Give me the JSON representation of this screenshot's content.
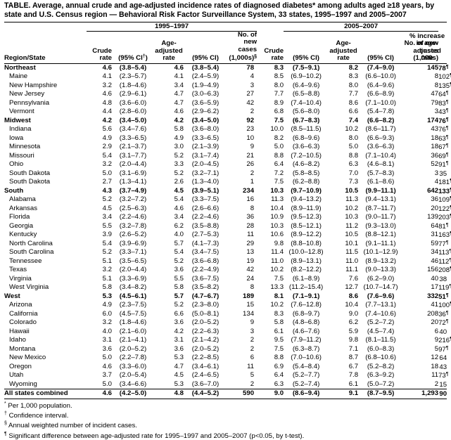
{
  "title": "TABLE. Average, annual crude and age-adjusted incidence rates of diagnosed diabetes* among adults aged ≥18 years, by state and U.S. Census region — Behavioral Risk Factor Surveillance System, 33 states, 1995–1997 and 2005–2007",
  "period1": "1995–1997",
  "period2": "2005–2007",
  "headers": {
    "region_state": "Region/State",
    "crude_rate": "Crude rate",
    "ci_crude": "(95% CI",
    "ci_dagger": "†",
    "ci_close": ")",
    "age_adjusted_rate": "Age-adjusted rate",
    "ci": "(95% CI)",
    "new_cases_1": "No. of new cases (1,000s)",
    "new_cases_mark": "§",
    "new_cases_2": "No. of new cases (1,000s)",
    "increase": "% increase in age-adjusted rate"
  },
  "rows": [
    {
      "name": "Northeast",
      "type": "region",
      "c1": "4.6",
      "ci1": "(3.8–5.4)",
      "a1": "4.6",
      "aci1": "(3.8–5.4)",
      "n1": "78",
      "c2": "8.3",
      "ci2": "(7.5–9.1)",
      "a2": "8.2",
      "aci2": "(7.4–9.0)",
      "n2": "145",
      "inc": "78",
      "mark": "¶"
    },
    {
      "name": "Maine",
      "type": "state",
      "c1": "4.1",
      "ci1": "(2.3–5.7)",
      "a1": "4.1",
      "aci1": "(2.4–5.9)",
      "n1": "4",
      "c2": "8.5",
      "ci2": "(6.9–10.2)",
      "a2": "8.3",
      "aci2": "(6.6–10.0)",
      "n2": "8",
      "inc": "102",
      "mark": "¶"
    },
    {
      "name": "New Hampshire",
      "type": "state",
      "c1": "3.2",
      "ci1": "(1.8–4.6)",
      "a1": "3.4",
      "aci1": "(1.9–4.9)",
      "n1": "3",
      "c2": "8.0",
      "ci2": "(6.4–9.6)",
      "a2": "8.0",
      "aci2": "(6.4–9.6)",
      "n2": "8",
      "inc": "135",
      "mark": "¶"
    },
    {
      "name": "New Jersey",
      "type": "state",
      "c1": "4.6",
      "ci1": "(2.9–6.1)",
      "a1": "4.7",
      "aci1": "(3.0–6.3)",
      "n1": "27",
      "c2": "7.7",
      "ci2": "(6.5–8.8)",
      "a2": "7.7",
      "aci2": "(6.6–8.9)",
      "n2": "47",
      "inc": "64",
      "mark": "¶"
    },
    {
      "name": "Pennsylvania",
      "type": "state",
      "c1": "4.8",
      "ci1": "(3.6–6.0)",
      "a1": "4.7",
      "aci1": "(3.6–5.9)",
      "n1": "42",
      "c2": "8.9",
      "ci2": "(7.4–10.4)",
      "a2": "8.6",
      "aci2": "(7.1–10.0)",
      "n2": "79",
      "inc": "83",
      "mark": "¶"
    },
    {
      "name": "Vermont",
      "type": "state",
      "c1": "4.4",
      "ci1": "(2.8–6.0)",
      "a1": "4.6",
      "aci1": "(2.9–6.2)",
      "n1": "2",
      "c2": "6.8",
      "ci2": "(5.6–8.0)",
      "a2": "6.6",
      "aci2": "(5.4–7.8)",
      "n2": "3",
      "inc": "43",
      "mark": "¶"
    },
    {
      "name": "Midwest",
      "type": "region",
      "c1": "4.2",
      "ci1": "(3.4–5.0)",
      "a1": "4.2",
      "aci1": "(3.4–5.0)",
      "n1": "92",
      "c2": "7.5",
      "ci2": "(6.7–8.3)",
      "a2": "7.4",
      "aci2": "(6.6–8.2)",
      "n2": "174",
      "inc": "76",
      "mark": "¶"
    },
    {
      "name": "Indiana",
      "type": "state",
      "c1": "5.6",
      "ci1": "(3.4–7.6)",
      "a1": "5.8",
      "aci1": "(3.6–8.0)",
      "n1": "23",
      "c2": "10.0",
      "ci2": "(8.5–11.5)",
      "a2": "10.2",
      "aci2": "(8.6–11.7)",
      "n2": "43",
      "inc": "76",
      "mark": "¶"
    },
    {
      "name": "Iowa",
      "type": "state",
      "c1": "4.9",
      "ci1": "(3.3–6.5)",
      "a1": "4.9",
      "aci1": "(3.3–6.5)",
      "n1": "10",
      "c2": "8.2",
      "ci2": "(6.8–9.6)",
      "a2": "8.0",
      "aci2": "(6.6–9.3)",
      "n2": "18",
      "inc": "63",
      "mark": "¶"
    },
    {
      "name": "Minnesota",
      "type": "state",
      "c1": "2.9",
      "ci1": "(2.1–3.7)",
      "a1": "3.0",
      "aci1": "(2.1–3.9)",
      "n1": "9",
      "c2": "5.0",
      "ci2": "(3.6–6.3)",
      "a2": "5.0",
      "aci2": "(3.6–6.3)",
      "n2": "18",
      "inc": "67",
      "mark": "¶"
    },
    {
      "name": "Missouri",
      "type": "state",
      "c1": "5.4",
      "ci1": "(3.1–7.7)",
      "a1": "5.2",
      "aci1": "(3.1–7.4)",
      "n1": "21",
      "c2": "8.8",
      "ci2": "(7.2–10.5)",
      "a2": "8.8",
      "aci2": "(7.1–10.4)",
      "n2": "36",
      "inc": "69",
      "mark": "¶"
    },
    {
      "name": "Ohio",
      "type": "state",
      "c1": "3.2",
      "ci1": "(2.0–4.4)",
      "a1": "3.3",
      "aci1": "(2.0–4.5)",
      "n1": "26",
      "c2": "6.4",
      "ci2": "(4.6–8.2)",
      "a2": "6.3",
      "aci2": "(4.6–8.1)",
      "n2": "52",
      "inc": "91",
      "mark": "¶"
    },
    {
      "name": "South Dakota",
      "type": "state",
      "c1": "5.0",
      "ci1": "(3.1–6.9)",
      "a1": "5.2",
      "aci1": "(3.2–7.1)",
      "n1": "2",
      "c2": "7.2",
      "ci2": "(5.8–8.5)",
      "a2": "7.0",
      "aci2": "(5.7–8.3)",
      "n2": "3",
      "inc": "35",
      "mark": ""
    },
    {
      "name": "South Dakota",
      "type": "state",
      "c1": "2.7",
      "ci1": "(1.3–4.1)",
      "a1": "2.6",
      "aci1": "(1.3–4.0)",
      "n1": "1",
      "c2": "7.5",
      "ci2": "(6.2–8.8)",
      "a2": "7.3",
      "aci2": "(6.1–8.6)",
      "n2": "4",
      "inc": "181",
      "mark": "¶"
    },
    {
      "name": "South",
      "type": "region",
      "c1": "4.3",
      "ci1": "(3.7–4.9)",
      "a1": "4.5",
      "aci1": "(3.9–5.1)",
      "n1": "234",
      "c2": "10.3",
      "ci2": "(9.7–10.9)",
      "a2": "10.5",
      "aci2": "(9.9–11.1)",
      "n2": "642",
      "inc": "133",
      "mark": "¶"
    },
    {
      "name": "Alabama",
      "type": "state",
      "c1": "5.2",
      "ci1": "(3.2–7.2)",
      "a1": "5.4",
      "aci1": "(3.3–7.5)",
      "n1": "16",
      "c2": "11.3",
      "ci2": "(9.4–13.2)",
      "a2": "11.3",
      "aci2": "(9.4–13.1)",
      "n2": "36",
      "inc": "109",
      "mark": "¶"
    },
    {
      "name": "Arkansas",
      "type": "state",
      "c1": "4.5",
      "ci1": "(2.5–6.3)",
      "a1": "4.6",
      "aci1": "(2.6–6.6)",
      "n1": "8",
      "c2": "10.4",
      "ci2": "(8.9–11.9)",
      "a2": "10.2",
      "aci2": "(8.7–11.7)",
      "n2": "20",
      "inc": "122",
      "mark": "¶"
    },
    {
      "name": "Florida",
      "type": "state",
      "c1": "3.4",
      "ci1": "(2.2–4.6)",
      "a1": "3.4",
      "aci1": "(2.2–4.6)",
      "n1": "36",
      "c2": "10.9",
      "ci2": "(9.5–12.3)",
      "a2": "10.3",
      "aci2": "(9.0–11.7)",
      "n2": "139",
      "inc": "203",
      "mark": "¶"
    },
    {
      "name": "Georgia",
      "type": "state",
      "c1": "5.5",
      "ci1": "(3.2–7.8)",
      "a1": "6.2",
      "aci1": "(3.5–8.8)",
      "n1": "28",
      "c2": "10.3",
      "ci2": "(8.5–12.1)",
      "a2": "11.2",
      "aci2": "(9.3–13.0)",
      "n2": "64",
      "inc": "81",
      "mark": "¶"
    },
    {
      "name": "Kentucky",
      "type": "state",
      "c1": "3.9",
      "ci1": "(2.6–5.2)",
      "a1": "4.0",
      "aci1": "(2.7–5.3)",
      "n1": "11",
      "c2": "10.6",
      "ci2": "(8.9–12.2)",
      "a2": "10.5",
      "aci2": "(8.8–12.1)",
      "n2": "31",
      "inc": "163",
      "mark": "¶"
    },
    {
      "name": "North Carolina",
      "type": "state",
      "c1": "5.4",
      "ci1": "(3.9–6.9)",
      "a1": "5.7",
      "aci1": "(4.1–7.3)",
      "n1": "29",
      "c2": "9.8",
      "ci2": "(8.8–10.8)",
      "a2": "10.1",
      "aci2": "(9.1–11.1)",
      "n2": "59",
      "inc": "77",
      "mark": "¶"
    },
    {
      "name": "South Carolina",
      "type": "state",
      "c1": "5.2",
      "ci1": "(3.3–7.1)",
      "a1": "5.4",
      "aci1": "(3.4–7.5)",
      "n1": "13",
      "c2": "11.4",
      "ci2": "(10.0–12.8)",
      "a2": "11.5",
      "aci2": "(10.1–12.9)",
      "n2": "34",
      "inc": "113",
      "mark": "¶"
    },
    {
      "name": "Tennessee",
      "type": "state",
      "c1": "5.1",
      "ci1": "(3.5–6.5)",
      "a1": "5.2",
      "aci1": "(3.6–6.8)",
      "n1": "19",
      "c2": "11.0",
      "ci2": "(8.9–13.1)",
      "a2": "11.0",
      "aci2": "(8.9–13.2)",
      "n2": "46",
      "inc": "112",
      "mark": "¶"
    },
    {
      "name": "Texas",
      "type": "state",
      "c1": "3.2",
      "ci1": "(2.0–4.4)",
      "a1": "3.6",
      "aci1": "(2.2–4.9)",
      "n1": "42",
      "c2": "10.2",
      "ci2": "(8.2–12.2)",
      "a2": "11.1",
      "aci2": "(9.0–13.3)",
      "n2": "156",
      "inc": "208",
      "mark": "¶"
    },
    {
      "name": "Virginia",
      "type": "state",
      "c1": "5.1",
      "ci1": "(3.3–6.9)",
      "a1": "5.5",
      "aci1": "(3.6–7.5)",
      "n1": "24",
      "c2": "7.5",
      "ci2": "(6.1–8.9)",
      "a2": "7.6",
      "aci2": "(6.2–9.0)",
      "n2": "40",
      "inc": "38",
      "mark": ""
    },
    {
      "name": "West Virginia",
      "type": "state",
      "c1": "5.8",
      "ci1": "(3.4–8.2)",
      "a1": "5.8",
      "aci1": "(3.5–8.2)",
      "n1": "8",
      "c2": "13.3",
      "ci2": "(11.2–15.4)",
      "a2": "12.7",
      "aci2": "(10.7–14.7)",
      "n2": "17",
      "inc": "119",
      "mark": "¶"
    },
    {
      "name": "West",
      "type": "region",
      "c1": "5.3",
      "ci1": "(4.5–6.1)",
      "a1": "5.7",
      "aci1": "(4.7–6.7)",
      "n1": "189",
      "c2": "8.1",
      "ci2": "(7.1–9.1)",
      "a2": "8.6",
      "aci2": "(7.6–9.6)",
      "n2": "332",
      "inc": "51",
      "mark": "¶"
    },
    {
      "name": "Arizona",
      "type": "state",
      "c1": "4.9",
      "ci1": "(2.3–7.5)",
      "a1": "5.2",
      "aci1": "(2.3–8.0)",
      "n1": "15",
      "c2": "10.2",
      "ci2": "(7.6–12.8)",
      "a2": "10.4",
      "aci2": "(7.7–13.1)",
      "n2": "41",
      "inc": "100",
      "mark": "¶"
    },
    {
      "name": "California",
      "type": "state",
      "c1": "6.0",
      "ci1": "(4.5–7.5)",
      "a1": "6.6",
      "aci1": "(5.0–8.1)",
      "n1": "134",
      "c2": "8.3",
      "ci2": "(6.8–9.7)",
      "a2": "9.0",
      "aci2": "(7.4–10.6)",
      "n2": "208",
      "inc": "36",
      "mark": "¶"
    },
    {
      "name": "Colorado",
      "type": "state",
      "c1": "3.2",
      "ci1": "(1.8–4.6)",
      "a1": "3.6",
      "aci1": "(2.0–5.2)",
      "n1": "9",
      "c2": "5.8",
      "ci2": "(4.8–6.8)",
      "a2": "6.2",
      "aci2": "(5.2–7.2)",
      "n2": "20",
      "inc": "72",
      "mark": "¶"
    },
    {
      "name": "Hawaii",
      "type": "state",
      "c1": "4.0",
      "ci1": "(2.1–6.0)",
      "a1": "4.2",
      "aci1": "(2.2–6.3)",
      "n1": "3",
      "c2": "6.1",
      "ci2": "(4.6–7.6)",
      "a2": "5.9",
      "aci2": "(4.5–7.4)",
      "n2": "6",
      "inc": "40",
      "mark": ""
    },
    {
      "name": "Idaho",
      "type": "state",
      "c1": "3.1",
      "ci1": "(2.1–4.1)",
      "a1": "3.1",
      "aci1": "(2.1–4.2)",
      "n1": "2",
      "c2": "9.5",
      "ci2": "(7.9–11.2)",
      "a2": "9.8",
      "aci2": "(8.1–11.5)",
      "n2": "9",
      "inc": "216",
      "mark": "¶"
    },
    {
      "name": "Montana",
      "type": "state",
      "c1": "3.6",
      "ci1": "(2.0–5.2)",
      "a1": "3.6",
      "aci1": "(2.0–5.2)",
      "n1": "2",
      "c2": "7.5",
      "ci2": "(6.3–8.7)",
      "a2": "7.1",
      "aci2": "(6.0–8.3)",
      "n2": "5",
      "inc": "97",
      "mark": "¶"
    },
    {
      "name": "New Mexico",
      "type": "state",
      "c1": "5.0",
      "ci1": "(2.2–7.8)",
      "a1": "5.3",
      "aci1": "(2.2–8.5)",
      "n1": "6",
      "c2": "8.8",
      "ci2": "(7.0–10.6)",
      "a2": "8.7",
      "aci2": "(6.8–10.6)",
      "n2": "12",
      "inc": "64",
      "mark": ""
    },
    {
      "name": "Oregon",
      "type": "state",
      "c1": "4.6",
      "ci1": "(3.3–6.0)",
      "a1": "4.7",
      "aci1": "(3.4–6.1)",
      "n1": "11",
      "c2": "6.9",
      "ci2": "(5.4–8.4)",
      "a2": "6.7",
      "aci2": "(5.2–8.2)",
      "n2": "18",
      "inc": "43",
      "mark": ""
    },
    {
      "name": "Utah",
      "type": "state",
      "c1": "3.7",
      "ci1": "(2.0–5.4)",
      "a1": "4.5",
      "aci1": "(2.4–6.5)",
      "n1": "5",
      "c2": "6.4",
      "ci2": "(5.2–7.7)",
      "a2": "7.8",
      "aci2": "(6.3–9.2)",
      "n2": "11",
      "inc": "73",
      "mark": "¶"
    },
    {
      "name": "Wyoming",
      "type": "state",
      "c1": "5.0",
      "ci1": "(3.4–6.6)",
      "a1": "5.3",
      "aci1": "(3.6–7.0)",
      "n1": "2",
      "c2": "6.3",
      "ci2": "(5.2–7.4)",
      "a2": "6.1",
      "aci2": "(5.0–7.2)",
      "n2": "2",
      "inc": "15",
      "mark": ""
    },
    {
      "name": "All states combined",
      "type": "total",
      "c1": "4.6",
      "ci1": "(4.2–5.0)",
      "a1": "4.8",
      "aci1": "(4.4–5.2)",
      "n1": "590",
      "c2": "9.0",
      "ci2": "(8.6–9.4)",
      "a2": "9.1",
      "aci2": "(8.7–9.5)",
      "n2": "1,293",
      "inc": "90",
      "mark": ""
    }
  ],
  "footnotes": [
    {
      "mark": "*",
      "text": " Per 1,000 population."
    },
    {
      "mark": "†",
      "text": " Confidence interval."
    },
    {
      "mark": "§",
      "text": " Annual weighted number of incident cases."
    },
    {
      "mark": "¶",
      "text": " Significant difference between age-adjusted rate for 1995–1997 and 2005–2007 (p<0.05, by t-test)."
    }
  ]
}
